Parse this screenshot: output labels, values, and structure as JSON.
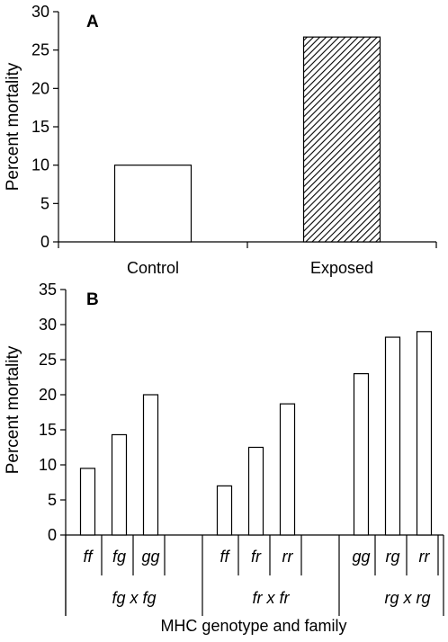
{
  "chart_data": [
    {
      "type": "bar",
      "panel_label": "A",
      "ylabel": "Percent mortality",
      "xlabel": "",
      "ylim": [
        0,
        30
      ],
      "yticks": [
        0,
        5,
        10,
        15,
        20,
        25,
        30
      ],
      "categories": [
        "Control",
        "Exposed"
      ],
      "values": [
        10,
        26.7
      ],
      "bar_fills": [
        "white",
        "hatched"
      ]
    },
    {
      "type": "bar",
      "panel_label": "B",
      "ylabel": "Percent mortality",
      "xlabel": "MHC genotype and family",
      "ylim": [
        0,
        35
      ],
      "yticks": [
        0,
        5,
        10,
        15,
        20,
        25,
        30,
        35
      ],
      "groups": [
        {
          "family": "fg x fg",
          "genotypes": [
            "ff",
            "fg",
            "gg"
          ],
          "values": [
            9.5,
            14.3,
            20
          ]
        },
        {
          "family": "fr x fr",
          "genotypes": [
            "ff",
            "fr",
            "rr"
          ],
          "values": [
            7,
            12.5,
            18.7
          ]
        },
        {
          "family": "rg x rg",
          "genotypes": [
            "gg",
            "rg",
            "rr"
          ],
          "values": [
            23,
            28.2,
            29
          ]
        }
      ]
    }
  ]
}
